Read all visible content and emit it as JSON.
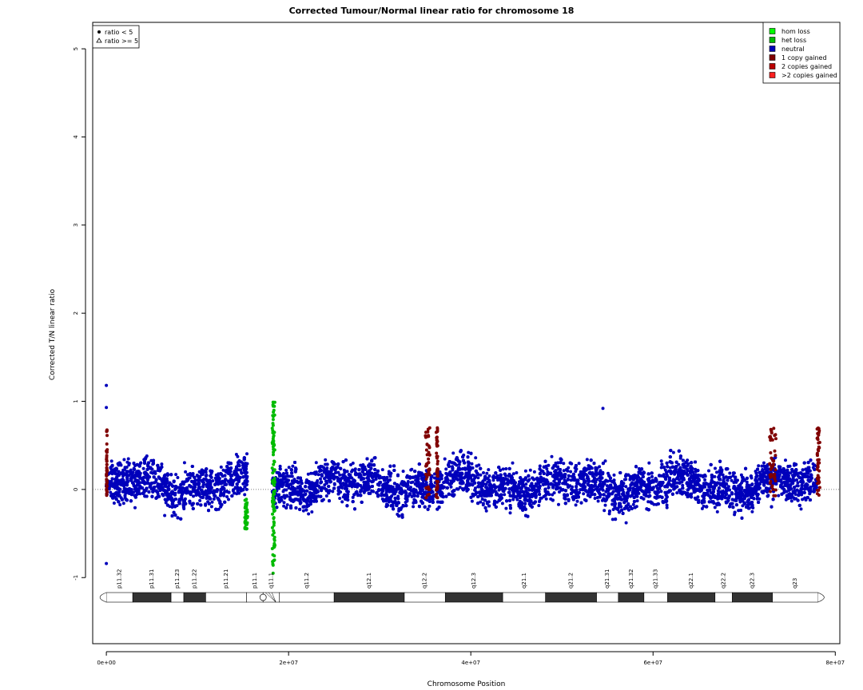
{
  "chart_data": {
    "type": "scatter",
    "title": "Corrected Tumour/Normal linear ratio for chromosome  18",
    "xlabel": "Chromosome Position",
    "ylabel": "Corrected T/N linear ratio",
    "xlim": [
      -1500000,
      80500000
    ],
    "ylim": [
      -1.75,
      5.3
    ],
    "x_ticks": [
      {
        "value": 0,
        "label": "0e+00"
      },
      {
        "value": 20000000,
        "label": "2e+07"
      },
      {
        "value": 40000000,
        "label": "4e+07"
      },
      {
        "value": 60000000,
        "label": "6e+07"
      },
      {
        "value": 80000000,
        "label": "8e+07"
      }
    ],
    "y_ticks": [
      {
        "value": -1,
        "label": "-1"
      },
      {
        "value": 0,
        "label": "0"
      },
      {
        "value": 1,
        "label": "1"
      },
      {
        "value": 2,
        "label": "2"
      },
      {
        "value": 3,
        "label": "3"
      },
      {
        "value": 4,
        "label": "4"
      },
      {
        "value": 5,
        "label": "5"
      }
    ],
    "reference_line": 0,
    "shape_legend": {
      "placement": "top-left",
      "items": [
        {
          "symbol": "circle",
          "label": "ratio < 5"
        },
        {
          "symbol": "triangle",
          "label": "ratio >= 5"
        }
      ]
    },
    "color_legend": {
      "placement": "top-right",
      "items": [
        {
          "label": "hom loss",
          "color": "#00ff00"
        },
        {
          "label": "het loss",
          "color": "#00bb00"
        },
        {
          "label": "neutral",
          "color": "#0000bb"
        },
        {
          "label": "1 copy gained",
          "color": "#800000"
        },
        {
          "label": "2 copies gained",
          "color": "#bb0000"
        },
        {
          "label": ">2 copies gained",
          "color": "#ff2020"
        }
      ]
    },
    "series": [
      {
        "name": "neutral",
        "color": "#0000bb",
        "n_points": 12000,
        "x_range": [
          0,
          78000000
        ],
        "gap": [
          15500000,
          18200000
        ],
        "typical_range": [
          -0.3,
          0.5
        ],
        "observed_max": 1.18,
        "observed_min": -0.84
      },
      {
        "name": "het loss",
        "color": "#00bb00",
        "x_intervals": [
          [
            15200000,
            15500000
          ],
          [
            18200000,
            18500000
          ]
        ],
        "typical_range": [
          -0.9,
          1.0
        ],
        "observed_max": 0.99,
        "observed_min": -0.95
      },
      {
        "name": "1 copy gained",
        "color": "#800000",
        "x_intervals": [
          [
            0,
            100000
          ],
          [
            35000000,
            35500000
          ],
          [
            36200000,
            36400000
          ],
          [
            72800000,
            73500000
          ],
          [
            78000000,
            78300000
          ]
        ],
        "typical_range": [
          -0.1,
          0.7
        ]
      }
    ],
    "ideogram": {
      "centromere_at": 17200000,
      "bands": [
        {
          "name": "p11.32",
          "start": 0,
          "end": 2900000,
          "stain": "gneg"
        },
        {
          "name": "p11.31",
          "start": 2900000,
          "end": 7100000,
          "stain": "gpos"
        },
        {
          "name": "p11.23",
          "start": 7100000,
          "end": 8500000,
          "stain": "gneg"
        },
        {
          "name": "p11.22",
          "start": 8500000,
          "end": 10900000,
          "stain": "gpos"
        },
        {
          "name": "p11.21",
          "start": 10900000,
          "end": 15400000,
          "stain": "gneg"
        },
        {
          "name": "p11.1",
          "start": 15400000,
          "end": 17200000,
          "stain": "acen"
        },
        {
          "name": "q11.1",
          "start": 17200000,
          "end": 19000000,
          "stain": "acen"
        },
        {
          "name": "q11.2",
          "start": 19000000,
          "end": 25000000,
          "stain": "gneg"
        },
        {
          "name": "q12.1",
          "start": 25000000,
          "end": 32700000,
          "stain": "gpos"
        },
        {
          "name": "q12.2",
          "start": 32700000,
          "end": 37200000,
          "stain": "gneg"
        },
        {
          "name": "q12.3",
          "start": 37200000,
          "end": 43500000,
          "stain": "gpos"
        },
        {
          "name": "q21.1",
          "start": 43500000,
          "end": 48200000,
          "stain": "gneg"
        },
        {
          "name": "q21.2",
          "start": 48200000,
          "end": 53800000,
          "stain": "gpos"
        },
        {
          "name": "q21.31",
          "start": 53800000,
          "end": 56200000,
          "stain": "gneg"
        },
        {
          "name": "q21.32",
          "start": 56200000,
          "end": 59000000,
          "stain": "gpos"
        },
        {
          "name": "q21.33",
          "start": 59000000,
          "end": 61600000,
          "stain": "gneg"
        },
        {
          "name": "q22.1",
          "start": 61600000,
          "end": 66800000,
          "stain": "gpos"
        },
        {
          "name": "q22.2",
          "start": 66800000,
          "end": 68700000,
          "stain": "gneg"
        },
        {
          "name": "q22.3",
          "start": 68700000,
          "end": 73100000,
          "stain": "gpos"
        },
        {
          "name": "q23",
          "start": 73100000,
          "end": 78077248,
          "stain": "gneg"
        }
      ]
    }
  }
}
